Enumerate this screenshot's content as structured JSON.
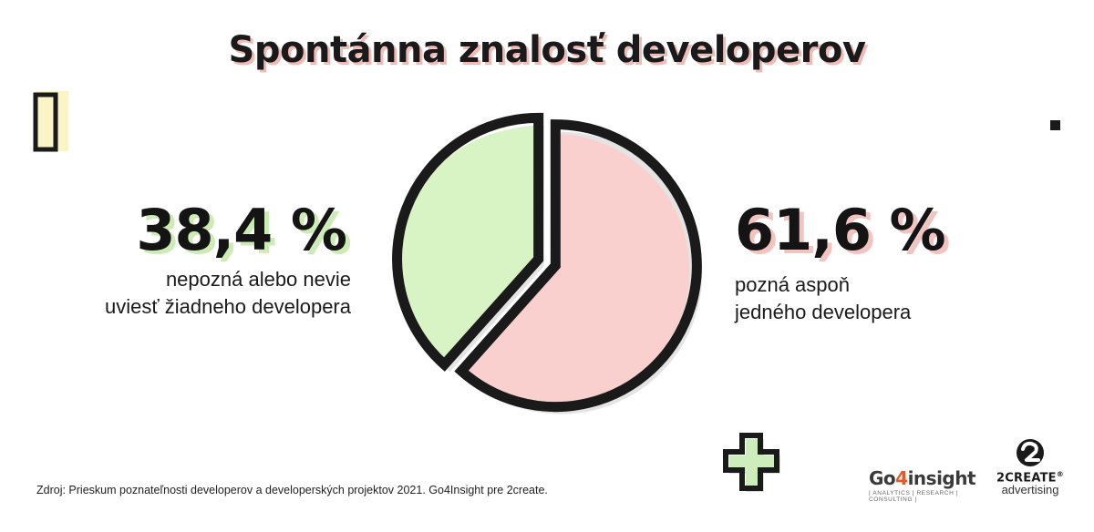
{
  "title": "Spontánna znalosť developerov",
  "left": {
    "percent": "38,4 %",
    "description_line1": "nepozná alebo nevie",
    "description_line2": "uviesť žiadneho developera"
  },
  "right": {
    "percent": "61,6 %",
    "description_line1": "pozná aspoň",
    "description_line2": "jedného developera"
  },
  "source": "Zdroj: Prieskum poznateľnosti developerov a developerských projektov 2021. Go4Insight pre 2create.",
  "logos": {
    "go4insight": {
      "name_a": "Go",
      "name_b": "4",
      "name_c": "insight",
      "tagline": "| ANALYTICS | RESEARCH | CONSULTING |"
    },
    "twocreate": {
      "name": "2CREATE",
      "registered": "®",
      "sub": "advertising"
    }
  },
  "colors": {
    "green": "#d8f3c4",
    "pink": "#f9d0cd",
    "outline": "#1a1a1a",
    "shadow": "#e4e4e4"
  },
  "chart_data": {
    "type": "pie",
    "slices": [
      {
        "label": "nepozná alebo nevie uviesť žiadneho developera",
        "value": 38.4,
        "color": "#d8f3c4"
      },
      {
        "label": "pozná aspoň jedného developera",
        "value": 61.6,
        "color": "#f9d0cd"
      }
    ]
  }
}
